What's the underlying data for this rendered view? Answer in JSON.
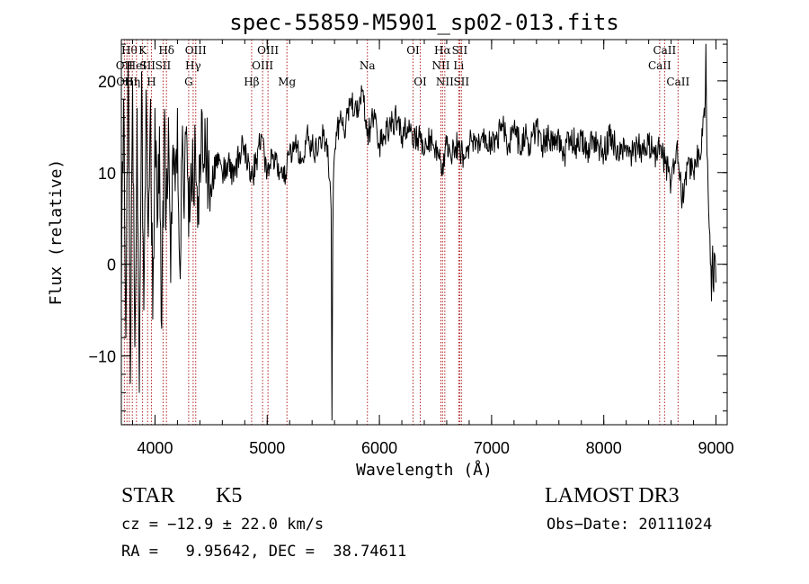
{
  "chart_data": {
    "type": "line",
    "title": "spec-55859-M5901_sp02-013.fits",
    "xlabel": "Wavelength (Å)",
    "ylabel": "Flux (relative)",
    "xlim": [
      3700,
      9100
    ],
    "ylim": [
      -17.5,
      24.5
    ],
    "x_ticks": [
      4000,
      5000,
      6000,
      7000,
      8000,
      9000
    ],
    "x_tick_labels": [
      "4000",
      "5000",
      "6000",
      "7000",
      "8000",
      "9000"
    ],
    "y_ticks": [
      -10,
      0,
      10,
      20
    ],
    "y_tick_labels": [
      "−10",
      "0",
      "10",
      "20"
    ],
    "x_minor_step": 200,
    "y_minor_step": 2,
    "grid": false,
    "line_color": "#000000",
    "marker_color": "#b22222",
    "series": [
      {
        "name": "flux",
        "x": [
          3700,
          3720,
          3740,
          3760,
          3780,
          3800,
          3820,
          3840,
          3860,
          3880,
          3900,
          3920,
          3940,
          3960,
          3980,
          4000,
          4020,
          4040,
          4060,
          4080,
          4100,
          4120,
          4140,
          4160,
          4180,
          4200,
          4220,
          4240,
          4260,
          4280,
          4300,
          4320,
          4340,
          4360,
          4380,
          4400,
          4450,
          4500,
          4550,
          4600,
          4650,
          4700,
          4750,
          4800,
          4850,
          4900,
          4950,
          5000,
          5050,
          5100,
          5150,
          5200,
          5250,
          5300,
          5350,
          5400,
          5450,
          5500,
          5540,
          5560,
          5570,
          5577,
          5584,
          5590,
          5600,
          5620,
          5650,
          5700,
          5750,
          5800,
          5850,
          5890,
          5920,
          5950,
          6000,
          6050,
          6100,
          6150,
          6200,
          6250,
          6300,
          6350,
          6400,
          6450,
          6500,
          6563,
          6600,
          6650,
          6700,
          6750,
          6800,
          6850,
          6900,
          6950,
          7000,
          7050,
          7100,
          7150,
          7200,
          7250,
          7300,
          7350,
          7400,
          7450,
          7500,
          7550,
          7600,
          7650,
          7700,
          7750,
          7800,
          7850,
          7900,
          7950,
          8000,
          8050,
          8100,
          8150,
          8200,
          8250,
          8300,
          8350,
          8400,
          8450,
          8500,
          8550,
          8600,
          8650,
          8700,
          8750,
          8800,
          8850,
          8880,
          8900,
          8910,
          8920,
          8930,
          8940,
          8950,
          8960,
          8970,
          8980,
          8990,
          9000
        ],
        "y": [
          -4,
          18,
          -8,
          22,
          -13,
          20,
          -9,
          17,
          -14,
          21,
          -5,
          19,
          3,
          18,
          -6,
          17,
          4,
          15,
          -7,
          14,
          6,
          16,
          -2,
          13,
          8,
          17,
          0,
          12,
          5,
          15,
          3,
          11,
          9,
          13,
          4,
          12,
          13,
          8,
          12,
          10,
          11,
          9,
          12,
          13,
          9,
          11,
          14,
          10,
          12,
          11,
          9,
          12,
          13,
          11,
          14,
          13,
          12,
          14,
          13,
          9,
          6,
          -17,
          3,
          9,
          12,
          14,
          16,
          15,
          18,
          16,
          19,
          14,
          15,
          16,
          13,
          14,
          15,
          16,
          14,
          15,
          13,
          14,
          12,
          14,
          13,
          11,
          13,
          12,
          13,
          12,
          13,
          14,
          13,
          14,
          13,
          14,
          15,
          13,
          15,
          13,
          14,
          13,
          15,
          13,
          14,
          13,
          14,
          12,
          14,
          13,
          14,
          12,
          14,
          13,
          12,
          14,
          13,
          12,
          13,
          12,
          13,
          12,
          13,
          12,
          13,
          11,
          9,
          13,
          7,
          11,
          10,
          12,
          14,
          16,
          24,
          12,
          8,
          4,
          0,
          -4,
          2,
          -3,
          1,
          -2
        ]
      }
    ],
    "line_markers": [
      {
        "wavelength": 3727,
        "label": "OII",
        "row": 1
      },
      {
        "wavelength": 3750,
        "label": "OIII",
        "row": 2
      },
      {
        "wavelength": 3771,
        "label": "Hθ",
        "row": 0
      },
      {
        "wavelength": 3798,
        "label": "Hη",
        "row": 2
      },
      {
        "wavelength": 3835,
        "label": "HeI",
        "row": 1
      },
      {
        "wavelength": 3889,
        "label": "K",
        "row": 0
      },
      {
        "wavelength": 3934,
        "label": "SII",
        "row": 1
      },
      {
        "wavelength": 3968,
        "label": "H",
        "row": 2
      },
      {
        "wavelength": 4072,
        "label": "SII",
        "row": 1
      },
      {
        "wavelength": 4102,
        "label": "Hδ",
        "row": 0
      },
      {
        "wavelength": 4300,
        "label": "G",
        "row": 2
      },
      {
        "wavelength": 4340,
        "label": "Hγ",
        "row": 1
      },
      {
        "wavelength": 4363,
        "label": "OIII",
        "row": 0
      },
      {
        "wavelength": 4861,
        "label": "Hβ",
        "row": 2
      },
      {
        "wavelength": 4959,
        "label": "OIII",
        "row": 1
      },
      {
        "wavelength": 5007,
        "label": "OIII",
        "row": 0
      },
      {
        "wavelength": 5176,
        "label": "Mg",
        "row": 2
      },
      {
        "wavelength": 5893,
        "label": "Na",
        "row": 1
      },
      {
        "wavelength": 6300,
        "label": "OI",
        "row": 0
      },
      {
        "wavelength": 6364,
        "label": "OI",
        "row": 2
      },
      {
        "wavelength": 6548,
        "label": "NII",
        "row": 1
      },
      {
        "wavelength": 6563,
        "label": "Hα",
        "row": 0
      },
      {
        "wavelength": 6583,
        "label": "NII",
        "row": 2
      },
      {
        "wavelength": 6707,
        "label": "Li",
        "row": 1
      },
      {
        "wavelength": 6716,
        "label": "SII",
        "row": 0
      },
      {
        "wavelength": 6731,
        "label": "SII",
        "row": 2
      },
      {
        "wavelength": 8498,
        "label": "CaII",
        "row": 1
      },
      {
        "wavelength": 8542,
        "label": "CaII",
        "row": 0
      },
      {
        "wavelength": 8662,
        "label": "CaII",
        "row": 2
      }
    ]
  },
  "info": {
    "object_class": "STAR",
    "subclass": "K5",
    "survey": "LAMOST DR3",
    "cz_line": "cz = −12.9 ± 22.0 km/s",
    "obs_date_line": "Obs−Date: 20111024",
    "coords_line": "RA =   9.95642, DEC =  38.74611"
  }
}
